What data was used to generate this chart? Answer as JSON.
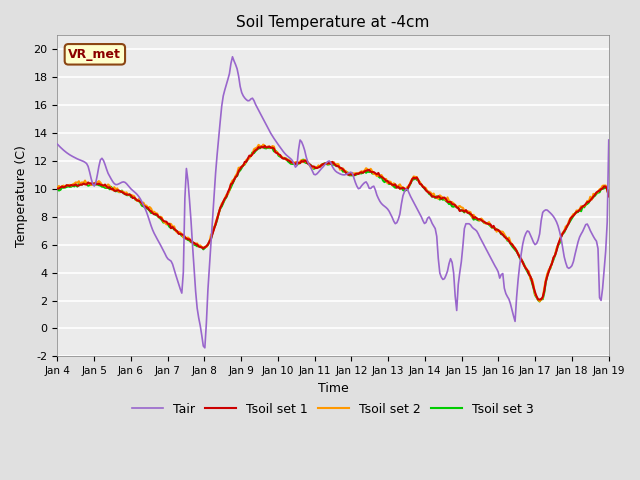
{
  "title": "Soil Temperature at -4cm",
  "xlabel": "Time",
  "ylabel": "Temperature (C)",
  "ylim": [
    -2,
    21
  ],
  "yticks": [
    -2,
    0,
    2,
    4,
    6,
    8,
    10,
    12,
    14,
    16,
    18,
    20
  ],
  "annotation_text": "VR_met",
  "annotation_color": "#8B0000",
  "annotation_bg": "#FFFFCC",
  "annotation_border": "#8B4513",
  "line_colors": {
    "Tair": "#9966CC",
    "Tsoil1": "#CC0000",
    "Tsoil2": "#FF9900",
    "Tsoil3": "#00CC00"
  },
  "line_widths": {
    "Tair": 1.2,
    "Tsoil1": 1.5,
    "Tsoil2": 1.5,
    "Tsoil3": 1.5
  },
  "legend_labels": [
    "Tair",
    "Tsoil set 1",
    "Tsoil set 2",
    "Tsoil set 3"
  ],
  "bg_color": "#E0E0E0",
  "plot_bg_color": "#EBEBEB",
  "grid_color": "white",
  "xtick_labels": [
    "Jan 4",
    "Jan 5",
    "Jan 6",
    "Jan 7",
    "Jan 8",
    "Jan 9",
    "Jan 10",
    "Jan 11",
    "Jan 12",
    "Jan 13",
    "Jan 14",
    "Jan 15",
    "Jan 16",
    "Jan 17",
    "Jan 18",
    "Jan 19"
  ]
}
